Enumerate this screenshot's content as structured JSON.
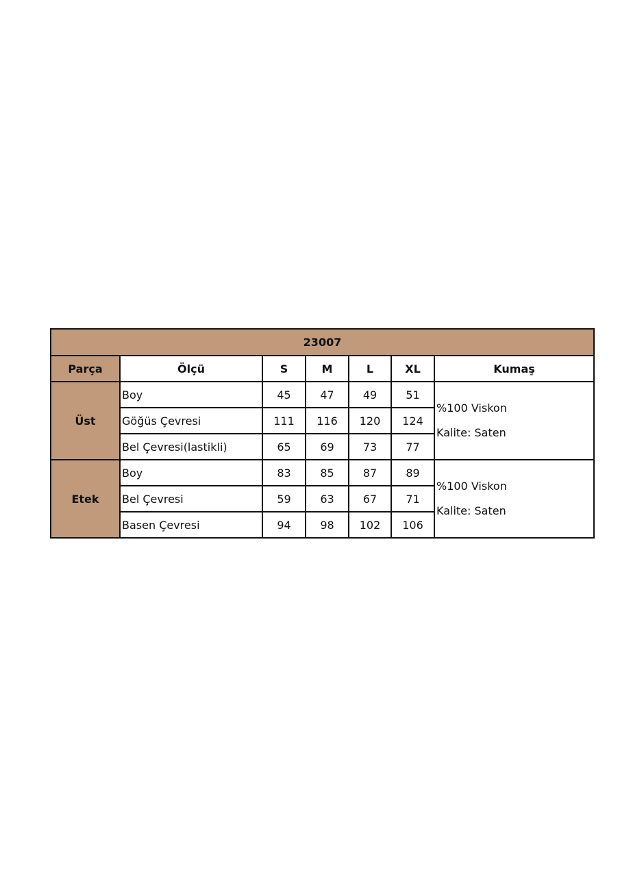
{
  "title": "23007",
  "headers": [
    "Parça",
    "Ölçü",
    "S",
    "M",
    "L",
    "XL",
    "Kumaş"
  ],
  "groups": [
    {
      "name": "Üst",
      "rows": [
        {
          "label": "Boy",
          "values": [
            "45",
            "47",
            "49",
            "51"
          ]
        },
        {
          "label": "Göğüs Çevresi",
          "values": [
            "111",
            "116",
            "120",
            "124"
          ]
        },
        {
          "label": "Bel Çevresi(lastikli)",
          "values": [
            "65",
            "69",
            "73",
            "77"
          ]
        }
      ],
      "fabric": [
        "%100 Viskon",
        "Kalite: Saten"
      ]
    },
    {
      "name": "Etek",
      "rows": [
        {
          "label": "Boy",
          "values": [
            "83",
            "85",
            "87",
            "89"
          ]
        },
        {
          "label": "Bel Çevresi",
          "values": [
            "59",
            "63",
            "67",
            "71"
          ]
        },
        {
          "label": "Basen Çevresi",
          "values": [
            "94",
            "98",
            "102",
            "106"
          ]
        }
      ],
      "fabric": [
        "%100 Viskon",
        "Kalite: Saten"
      ]
    }
  ],
  "colors": {
    "header_bg": "#c09a7b",
    "border": "#111111"
  }
}
